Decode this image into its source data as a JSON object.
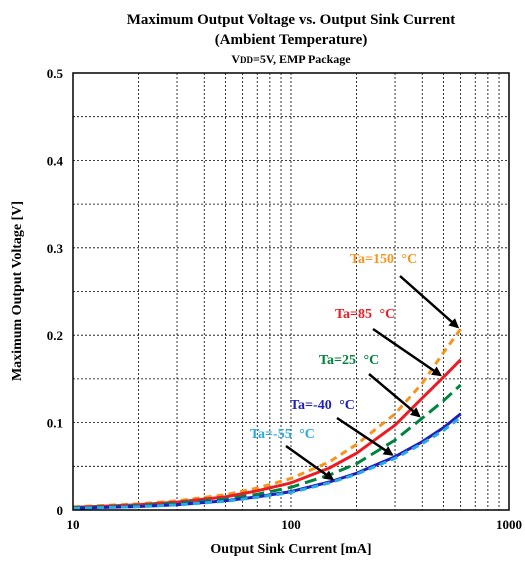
{
  "chart_data": {
    "type": "line",
    "title": "Maximum Output Voltage vs. Output Sink Current",
    "title_line2": "(Ambient Temperature)",
    "subtitle": "VDD=5V, EMP Package",
    "subtitle_parts": {
      "v": "V",
      "sub": "DD",
      "rest": "=5V, EMP Package"
    },
    "xlabel": "Output Sink Current [mA]",
    "ylabel": "Maximum Output Voltage [V]",
    "xscale": "log",
    "xlim": [
      10,
      1000
    ],
    "ylim": [
      0,
      0.5
    ],
    "x_ticks": [
      "10",
      "100",
      "1000"
    ],
    "y_ticks": [
      "0",
      "0.1",
      "0.2",
      "0.3",
      "0.4",
      "0.5"
    ],
    "grid": true,
    "series": [
      {
        "name": "Ta=150 °C",
        "label_text": "Ta=150",
        "deg": "°C",
        "color": "#f7941d",
        "dash": "dashed",
        "x": [
          10,
          20,
          30,
          50,
          70,
          100,
          150,
          200,
          300,
          400,
          500,
          600
        ],
        "y": [
          0.0035,
          0.007,
          0.0105,
          0.0175,
          0.025,
          0.036,
          0.055,
          0.075,
          0.11,
          0.145,
          0.18,
          0.207
        ]
      },
      {
        "name": "Ta=85 °C",
        "label_text": "Ta=85",
        "deg": "°C",
        "color": "#ed1c24",
        "dash": "solid",
        "x": [
          10,
          20,
          30,
          50,
          70,
          100,
          150,
          200,
          300,
          400,
          500,
          600
        ],
        "y": [
          0.003,
          0.006,
          0.009,
          0.015,
          0.022,
          0.031,
          0.048,
          0.065,
          0.097,
          0.128,
          0.152,
          0.172
        ]
      },
      {
        "name": "Ta=25 °C",
        "label_text": "Ta=25",
        "deg": "°C",
        "color": "#00843d",
        "dash": "long-dash",
        "x": [
          10,
          20,
          30,
          50,
          70,
          100,
          150,
          200,
          300,
          400,
          500,
          600
        ],
        "y": [
          0.0025,
          0.005,
          0.0075,
          0.0125,
          0.018,
          0.026,
          0.04,
          0.053,
          0.08,
          0.105,
          0.125,
          0.143
        ]
      },
      {
        "name": "Ta=-40 °C",
        "label_text": "Ta=-40",
        "deg": "°C",
        "color": "#1f1fbf",
        "dash": "solid",
        "x": [
          10,
          20,
          30,
          50,
          70,
          100,
          150,
          200,
          300,
          400,
          500,
          600
        ],
        "y": [
          0.002,
          0.004,
          0.006,
          0.0105,
          0.015,
          0.021,
          0.032,
          0.042,
          0.061,
          0.078,
          0.094,
          0.11
        ]
      },
      {
        "name": "Ta=-55 °C",
        "label_text": "Ta=-55",
        "deg": "°C",
        "color": "#29abe2",
        "dash": "dashed",
        "x": [
          10,
          20,
          30,
          50,
          70,
          100,
          150,
          200,
          300,
          400,
          500,
          600
        ],
        "y": [
          0.002,
          0.0038,
          0.0058,
          0.01,
          0.0145,
          0.02,
          0.031,
          0.041,
          0.059,
          0.076,
          0.091,
          0.106
        ]
      }
    ]
  }
}
